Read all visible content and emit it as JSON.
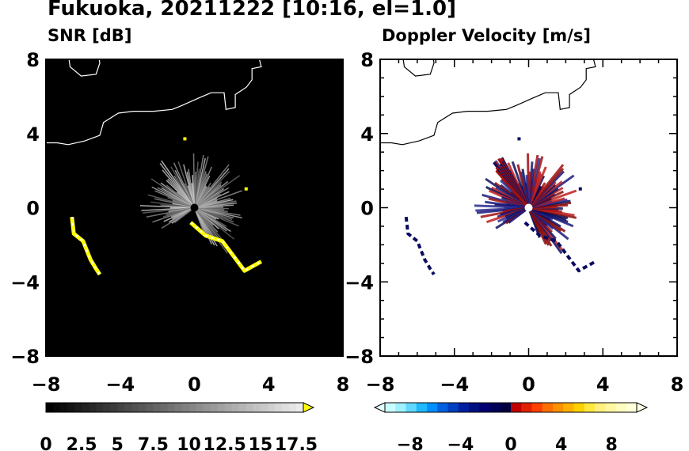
{
  "title": "Fukuoka, 20211222 [10:16, el=1.0]",
  "chart_data": [
    {
      "type": "heatmap",
      "title": "SNR [dB]",
      "xlim": [
        -8,
        8
      ],
      "ylim": [
        -8,
        8
      ],
      "xticks": [
        "−8",
        "−4",
        "0",
        "4",
        "8"
      ],
      "yticks": [
        "8",
        "4",
        "0",
        "−4",
        "−8"
      ],
      "background": "#000000",
      "colorbar": {
        "range": [
          0,
          18
        ],
        "ticks": [
          "0",
          "2.5",
          "5",
          "7.5",
          "10",
          "12.5",
          "15",
          "17.5"
        ],
        "extend": "max",
        "colors": [
          "#000000",
          "#ffffff",
          "#ffff00"
        ]
      },
      "features": [
        {
          "name": "radar-echo-fan",
          "center": [
            0,
            0
          ],
          "max_range": 3.0,
          "value": "low (gray)"
        },
        {
          "name": "coastline-echo-east",
          "points": [
            [
              -0.2,
              -0.8
            ],
            [
              0.6,
              -1.5
            ],
            [
              1.5,
              -1.8
            ],
            [
              2.1,
              -2.6
            ],
            [
              2.7,
              -3.4
            ],
            [
              3.6,
              -2.9
            ]
          ],
          "value": "high (yellow)"
        },
        {
          "name": "coastline-echo-west",
          "points": [
            [
              -6.6,
              -0.5
            ],
            [
              -6.5,
              -1.4
            ],
            [
              -6.0,
              -1.8
            ],
            [
              -5.6,
              -2.8
            ],
            [
              -5.3,
              -3.3
            ],
            [
              -5.1,
              -3.6
            ]
          ],
          "value": "high (yellow/white)"
        }
      ]
    },
    {
      "type": "heatmap",
      "title": "Doppler Velocity [m/s]",
      "xlim": [
        -8,
        8
      ],
      "ylim": [
        -8,
        8
      ],
      "xticks": [
        "−8",
        "−4",
        "0",
        "4",
        "8"
      ],
      "yticks": [
        "8",
        "4",
        "0",
        "−4",
        "−8"
      ],
      "background": "#ffffff",
      "colorbar": {
        "range": [
          -10,
          10
        ],
        "ticks": [
          "−8",
          "−4",
          "0",
          "4",
          "8"
        ],
        "extend": "both",
        "colors": [
          "#c8ffff",
          "#00a0ff",
          "#0000a0",
          "#a00000",
          "#ff8000",
          "#ffffc8"
        ]
      },
      "features": [
        {
          "name": "velocity-fan",
          "center": [
            0,
            0
          ],
          "max_range": 3.0,
          "values": "mixed −4 to 4"
        },
        {
          "name": "coastline-echo-west",
          "value": "≈ −1 (dark blue)"
        },
        {
          "name": "coastline-echo-east",
          "value": "≈ −1 (dark blue)"
        }
      ]
    }
  ]
}
